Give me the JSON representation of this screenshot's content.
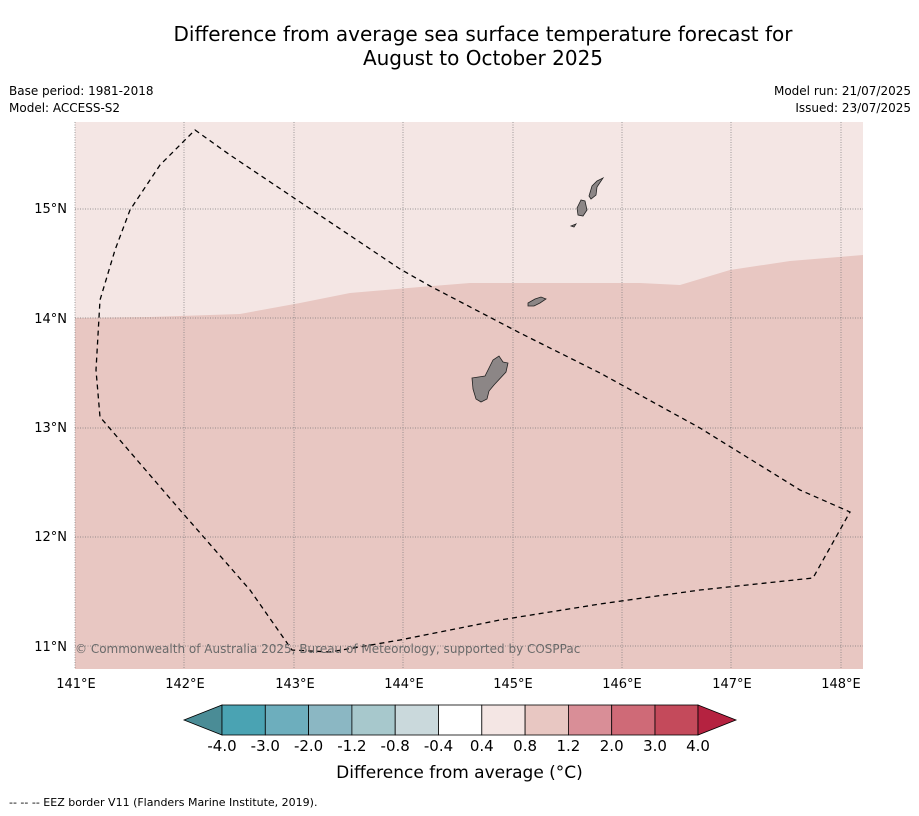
{
  "title_line1": "Difference from average sea surface temperature forecast for",
  "title_line2": "August to October 2025",
  "base_period": "Base period: 1981-2018",
  "model": "Model: ACCESS-S2",
  "model_run": "Model run: 21/07/2025",
  "issued": "Issued: 23/07/2025",
  "copyright": "© Commonwealth of Australia 2025, Bureau of Meteorology, supported by COSPPac",
  "colorbar_label": "Difference from average (°C)",
  "footnote": "-- -- -- EEZ border V11 (Flanders Marine Institute, 2019).",
  "map": {
    "lon_ticks": [
      "141°E",
      "142°E",
      "143°E",
      "144°E",
      "145°E",
      "146°E",
      "147°E",
      "148°E"
    ],
    "lat_ticks": [
      "15°N",
      "14°N",
      "13°N",
      "12°N",
      "11°N"
    ],
    "regions": [
      {
        "range": "0.4 to 0.8",
        "color": "#f4e6e4"
      },
      {
        "range": "0.8 to 1.2",
        "color": "#e8c7c2"
      }
    ],
    "land_color": "#8c8686"
  },
  "colorbar": {
    "labels": [
      "-4.0",
      "-3.0",
      "-2.0",
      "-1.2",
      "-0.8",
      "-0.4",
      "0.4",
      "0.8",
      "1.2",
      "2.0",
      "3.0",
      "4.0"
    ],
    "colors": [
      "#4a8c96",
      "#4aa3b3",
      "#6daebd",
      "#8bb7c3",
      "#a7c8cc",
      "#cad9dc",
      "#ffffff",
      "#f4e6e4",
      "#e8c7c2",
      "#d98e97",
      "#cf6a77",
      "#c44a5b",
      "#b52240"
    ]
  }
}
